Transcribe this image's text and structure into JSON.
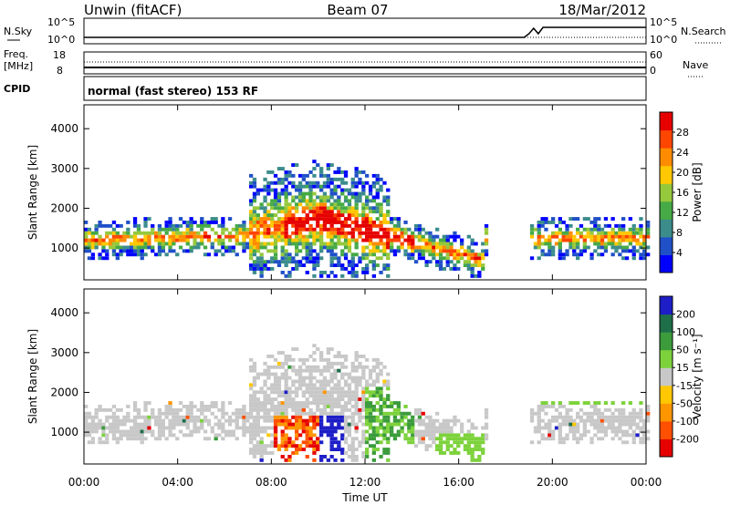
{
  "header": {
    "station": "Unwin (fitACF)",
    "beam": "Beam 07",
    "date": "18/Mar/2012"
  },
  "status_panel": {
    "nsky_label": "N.Sky",
    "nsearch_label": "N.Search",
    "count_ticks": [
      "10^5",
      "10^0"
    ],
    "freq_label_1": "Freq.",
    "freq_label_2": "[MHz]",
    "freq_ticks": [
      "18",
      "8"
    ],
    "nave_label": "Nave",
    "nave_ticks": [
      "60",
      "0"
    ],
    "cpid_label": "CPID",
    "cpid_value": "normal (fast stereo) 153 RF"
  },
  "chart_data": [
    {
      "type": "heatmap",
      "name": "power",
      "ylabel": "Slant Range [km]",
      "xlabel": "",
      "ylim": [
        200,
        4600
      ],
      "yticks": [
        "4000",
        "3000",
        "2000",
        "1000"
      ],
      "ytick_values": [
        4000,
        3000,
        2000,
        1000
      ],
      "colorbar_label": "Power [dB]",
      "colorbar_ticks": [
        "28",
        "24",
        "20",
        "16",
        "12",
        "8",
        "4"
      ],
      "colorbar_colors": [
        "#0000ff",
        "#2050c8",
        "#3c8c8c",
        "#46aa46",
        "#96c83c",
        "#ffc800",
        "#ff8c00",
        "#ff4600",
        "#e60000"
      ]
    },
    {
      "type": "heatmap",
      "name": "velocity",
      "ylabel": "Slant Range [km]",
      "xlabel": "Time UT",
      "ylim": [
        200,
        4600
      ],
      "xlim": [
        0,
        24
      ],
      "yticks": [
        "4000",
        "3000",
        "2000",
        "1000"
      ],
      "ytick_values": [
        4000,
        3000,
        2000,
        1000
      ],
      "xticks": [
        "00:00",
        "04:00",
        "08:00",
        "12:00",
        "16:00",
        "20:00",
        "00:00"
      ],
      "xtick_values": [
        0,
        4,
        8,
        12,
        16,
        20,
        24
      ],
      "colorbar_label": "Velocity [m s⁻¹]",
      "colorbar_ticks": [
        "200",
        "100",
        "50",
        "15",
        "-15",
        "-50",
        "-100",
        "-200"
      ],
      "colorbar_colors": [
        "#e60000",
        "#ff5000",
        "#ff9600",
        "#ffc800",
        "#c8c8c8",
        "#7dd23c",
        "#3c9c3c",
        "#1e6e4a",
        "#1e1ec8"
      ]
    }
  ]
}
